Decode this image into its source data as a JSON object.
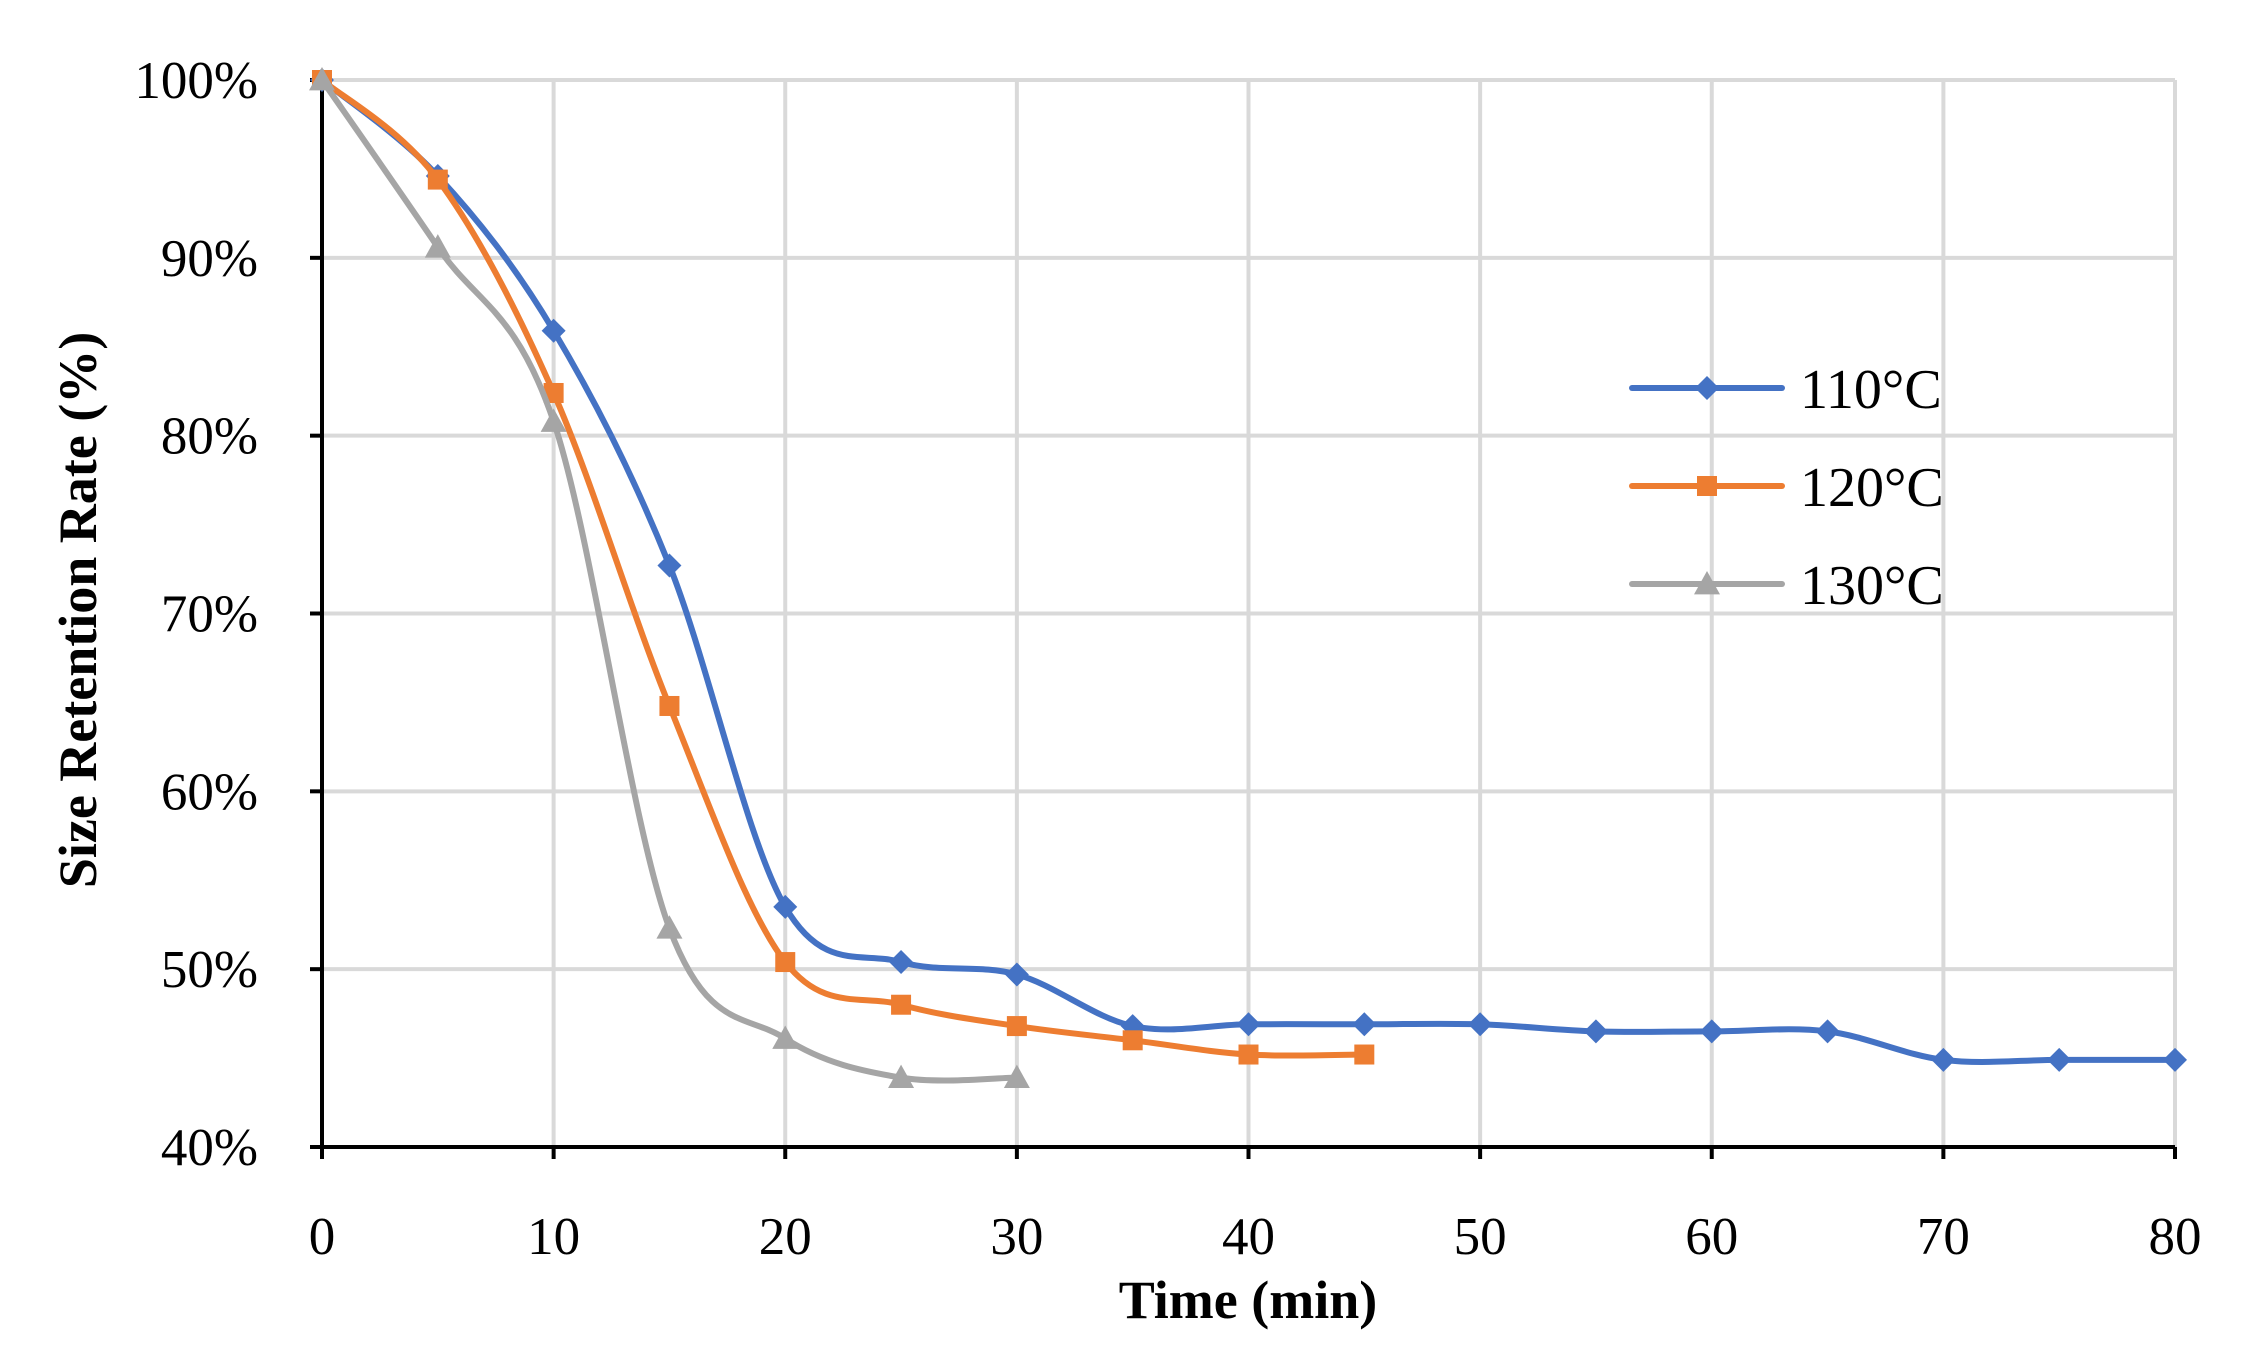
{
  "chart_data": {
    "type": "line",
    "title": "",
    "xlabel": "Time (min)",
    "ylabel": "Size Retention Rate (%)",
    "xlim": [
      0,
      80
    ],
    "ylim": [
      40,
      100
    ],
    "xticks": [
      0,
      10,
      20,
      30,
      40,
      50,
      60,
      70,
      80
    ],
    "yticks": [
      40,
      50,
      60,
      70,
      80,
      90,
      100
    ],
    "xtick_labels": [
      "0",
      "10",
      "20",
      "30",
      "40",
      "50",
      "60",
      "70",
      "80"
    ],
    "ytick_labels": [
      "40%",
      "50%",
      "60%",
      "70%",
      "80%",
      "90%",
      "100%"
    ],
    "grid": true,
    "legend_position": "right",
    "series": [
      {
        "name": "110°C",
        "marker": "diamond",
        "color": "#4472C4",
        "x": [
          0,
          5,
          10,
          15,
          20,
          25,
          30,
          35,
          40,
          45,
          50,
          55,
          60,
          65,
          70,
          75,
          80
        ],
        "values": [
          100,
          94.6,
          85.9,
          72.7,
          53.5,
          50.4,
          49.7,
          46.8,
          46.9,
          46.9,
          46.9,
          46.5,
          46.5,
          46.5,
          44.9,
          44.9,
          44.9
        ]
      },
      {
        "name": "120°C",
        "marker": "square",
        "color": "#ED7D31",
        "x": [
          0,
          5,
          10,
          15,
          20,
          25,
          30,
          35,
          40,
          45
        ],
        "values": [
          100,
          94.4,
          82.4,
          64.8,
          50.4,
          48.0,
          46.8,
          46.0,
          45.2,
          45.2
        ]
      },
      {
        "name": "130°C",
        "marker": "triangle",
        "color": "#A5A5A5",
        "x": [
          0,
          5,
          10,
          15,
          20,
          25,
          30
        ],
        "values": [
          100,
          90.6,
          80.8,
          52.3,
          46.1,
          43.9,
          43.9
        ]
      }
    ]
  }
}
